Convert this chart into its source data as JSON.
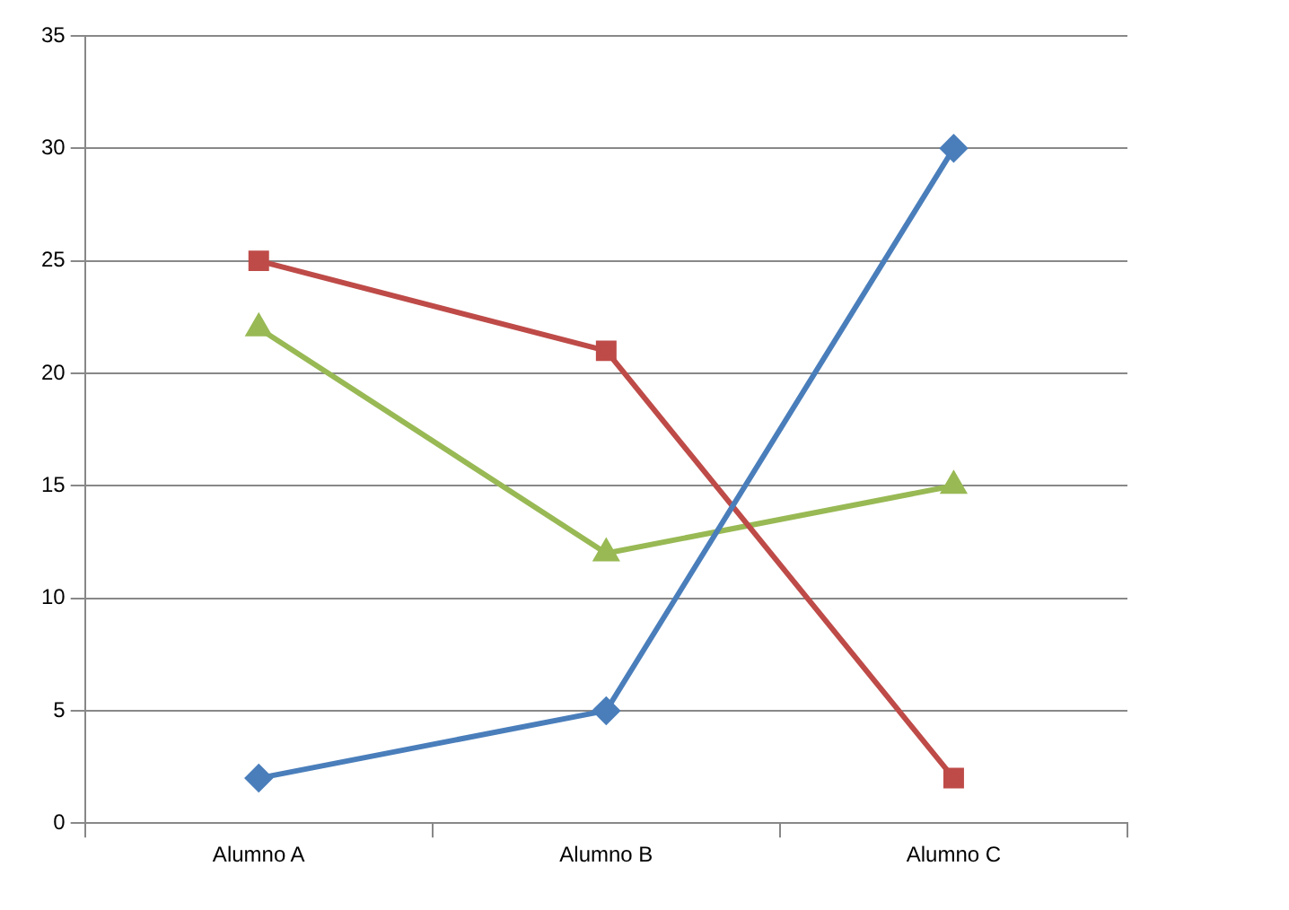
{
  "chart_data": {
    "type": "line",
    "categories": [
      "Alumno A",
      "Alumno B",
      "Alumno C"
    ],
    "series": [
      {
        "color": "#4a7ebb",
        "values": [
          2,
          5,
          30
        ],
        "marker": "diamond"
      },
      {
        "color": "#be4b48",
        "values": [
          25,
          21,
          2
        ],
        "marker": "square"
      },
      {
        "color": "#98b954",
        "values": [
          22,
          12,
          15
        ],
        "marker": "triangle"
      }
    ],
    "ylim": [
      0,
      35
    ],
    "yticks": [
      0,
      5,
      10,
      15,
      20,
      25,
      30,
      35
    ],
    "grid": "y",
    "legend": false,
    "line_style": "solid"
  }
}
